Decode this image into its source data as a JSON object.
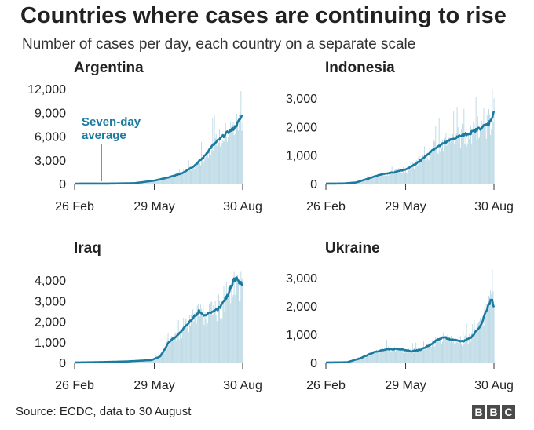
{
  "header": {
    "title": "Countries where cases are continuing to rise",
    "subtitle": "Number of cases per day, each country on a separate scale"
  },
  "footer": {
    "source": "Source: ECDC, data to 30 August",
    "logo": [
      "B",
      "B",
      "C"
    ]
  },
  "colors": {
    "line": "#1a7aa0",
    "bars": "#b8d7e3",
    "text": "#222222",
    "annotation": "#1a7aa0"
  },
  "chart_data": [
    {
      "type": "bar",
      "title": "Argentina",
      "x": [
        "26 Feb",
        "29 May",
        "30 Aug"
      ],
      "xticks": [
        "26 Feb",
        "29 May",
        "30 Aug"
      ],
      "ylim": [
        0,
        12000
      ],
      "yticks": [
        0,
        3000,
        6000,
        9000,
        12000
      ],
      "ytick_labels": [
        "0",
        "3,000",
        "6,000",
        "9,000",
        "12,000"
      ],
      "annotation": {
        "text": [
          "Seven-day",
          "average"
        ],
        "points_to": "seven-day average line"
      },
      "series": [
        {
          "name": "Daily cases",
          "type": "bar"
        },
        {
          "name": "Seven-day average",
          "type": "line",
          "keypoints": [
            [
              0,
              0
            ],
            [
              40,
              10
            ],
            [
              70,
              60
            ],
            [
              94,
              400
            ],
            [
              110,
              800
            ],
            [
              125,
              1300
            ],
            [
              140,
              2300
            ],
            [
              150,
              3300
            ],
            [
              160,
              4700
            ],
            [
              170,
              5700
            ],
            [
              180,
              6600
            ],
            [
              186,
              7000
            ],
            [
              190,
              7600
            ],
            [
              196,
              8700
            ]
          ]
        }
      ],
      "peak_daily": 11700
    },
    {
      "type": "bar",
      "title": "Indonesia",
      "x": [
        "26 Feb",
        "29 May",
        "30 Aug"
      ],
      "xticks": [
        "26 Feb",
        "29 May",
        "30 Aug"
      ],
      "ylim": [
        0,
        3000
      ],
      "yticks": [
        0,
        1000,
        2000,
        3000
      ],
      "ytick_labels": [
        "0",
        "1,000",
        "2,000",
        "3,000"
      ],
      "series": [
        {
          "name": "Daily cases",
          "type": "bar"
        },
        {
          "name": "Seven-day average",
          "type": "line",
          "keypoints": [
            [
              0,
              0
            ],
            [
              20,
              5
            ],
            [
              35,
              40
            ],
            [
              50,
              180
            ],
            [
              65,
              330
            ],
            [
              80,
              400
            ],
            [
              94,
              500
            ],
            [
              110,
              800
            ],
            [
              125,
              1200
            ],
            [
              140,
              1450
            ],
            [
              150,
              1600
            ],
            [
              160,
              1700
            ],
            [
              170,
              1800
            ],
            [
              180,
              1950
            ],
            [
              190,
              2100
            ],
            [
              196,
              2500
            ]
          ]
        }
      ],
      "peak_daily": 3300
    },
    {
      "type": "bar",
      "title": "Iraq",
      "x": [
        "26 Feb",
        "29 May",
        "30 Aug"
      ],
      "xticks": [
        "26 Feb",
        "29 May",
        "30 Aug"
      ],
      "ylim": [
        0,
        4000
      ],
      "yticks": [
        0,
        1000,
        2000,
        3000,
        4000
      ],
      "ytick_labels": [
        "0",
        "1,000",
        "2,000",
        "3,000",
        "4,000"
      ],
      "series": [
        {
          "name": "Daily cases",
          "type": "bar"
        },
        {
          "name": "Seven-day average",
          "type": "line",
          "keypoints": [
            [
              0,
              0
            ],
            [
              30,
              20
            ],
            [
              60,
              50
            ],
            [
              90,
              120
            ],
            [
              100,
              300
            ],
            [
              110,
              1000
            ],
            [
              122,
              1400
            ],
            [
              135,
              2000
            ],
            [
              145,
              2500
            ],
            [
              152,
              2300
            ],
            [
              160,
              2400
            ],
            [
              170,
              2700
            ],
            [
              180,
              3400
            ],
            [
              186,
              4100
            ],
            [
              196,
              3800
            ]
          ]
        }
      ],
      "peak_daily": 4400
    },
    {
      "type": "bar",
      "title": "Ukraine",
      "x": [
        "26 Feb",
        "29 May",
        "30 Aug"
      ],
      "xticks": [
        "26 Feb",
        "29 May",
        "30 Aug"
      ],
      "ylim": [
        0,
        3000
      ],
      "yticks": [
        0,
        1000,
        2000,
        3000
      ],
      "ytick_labels": [
        "0",
        "1,000",
        "2,000",
        "3,000"
      ],
      "series": [
        {
          "name": "Daily cases",
          "type": "bar"
        },
        {
          "name": "Seven-day average",
          "type": "line",
          "keypoints": [
            [
              0,
              0
            ],
            [
              25,
              10
            ],
            [
              40,
              150
            ],
            [
              55,
              350
            ],
            [
              70,
              470
            ],
            [
              85,
              480
            ],
            [
              100,
              400
            ],
            [
              110,
              450
            ],
            [
              120,
              600
            ],
            [
              130,
              800
            ],
            [
              138,
              900
            ],
            [
              146,
              800
            ],
            [
              160,
              750
            ],
            [
              170,
              900
            ],
            [
              180,
              1300
            ],
            [
              188,
              1900
            ],
            [
              193,
              2250
            ],
            [
              196,
              2000
            ]
          ]
        }
      ],
      "peak_daily": 3300
    }
  ]
}
